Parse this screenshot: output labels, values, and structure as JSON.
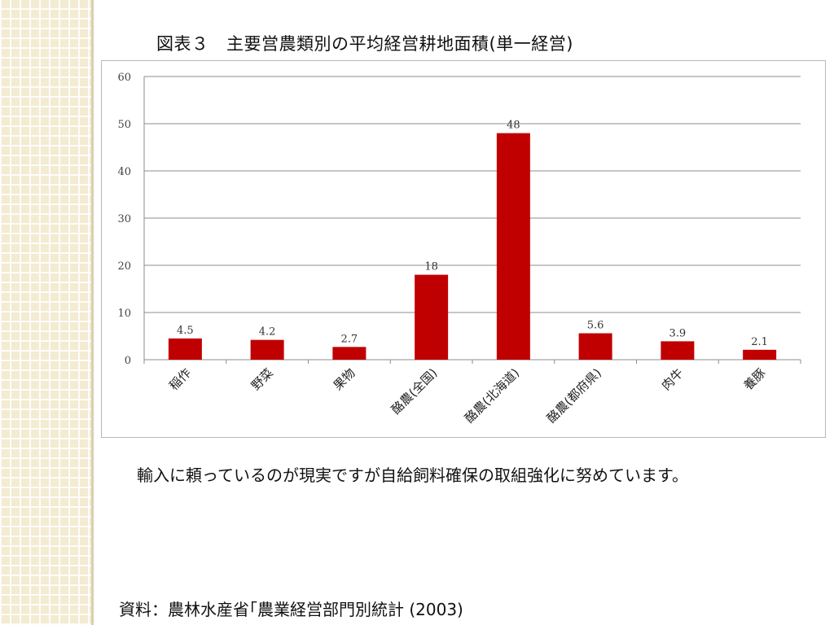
{
  "slide": {
    "title": "図表３　主要営農類別の平均経営耕地面積(単一経営)",
    "body": "輸入に頼っているのが現実ですが自給飼料確保の取組強化に努めています。",
    "source": "資料：農林水産省｢農業経営部門別統計 (2003)"
  },
  "chart_data": {
    "type": "bar",
    "title": "",
    "xlabel": "",
    "ylabel": "",
    "categories": [
      "稲作",
      "野菜",
      "果物",
      "酪農(全国)",
      "酪農(北海道)",
      "酪農(都府県)",
      "肉牛",
      "養豚"
    ],
    "values": [
      4.5,
      4.2,
      2.7,
      18,
      48,
      5.6,
      3.9,
      2.1
    ],
    "value_labels": [
      "4.5",
      "4.2",
      "2.7",
      "18",
      "48",
      "5.6",
      "3.9",
      "2.1"
    ],
    "ylim": [
      0,
      60
    ],
    "yticks": [
      0,
      10,
      20,
      30,
      40,
      50,
      60
    ],
    "grid": true,
    "legend": "none",
    "bar_color": "#c00000",
    "grid_color": "#8c8c8c"
  }
}
